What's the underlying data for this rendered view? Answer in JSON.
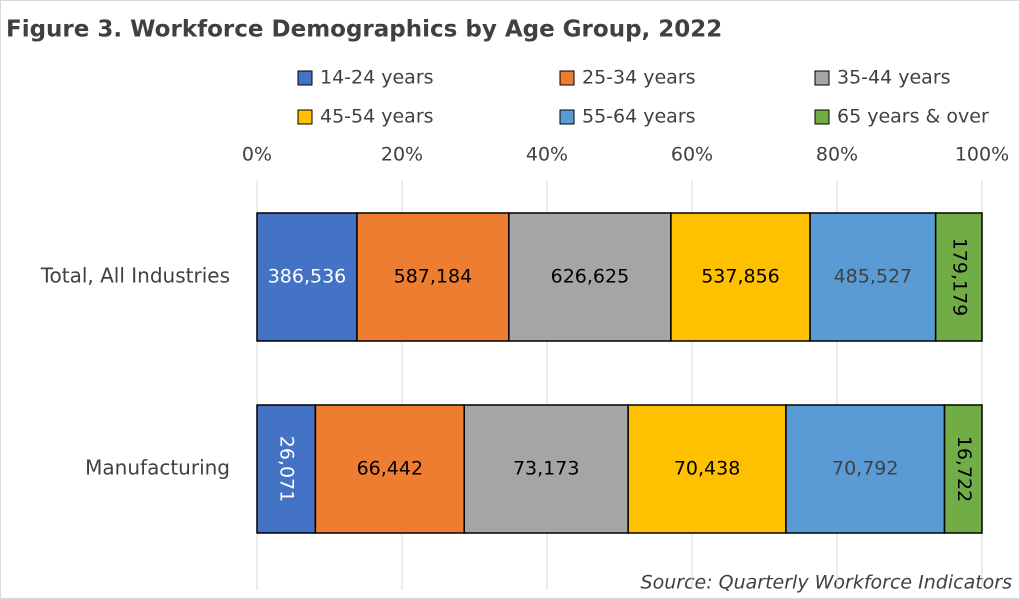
{
  "chart_data": {
    "type": "stacked_bar_100_horizontal",
    "title": "Figure 3. Workforce Demographics by Age Group, 2022",
    "source": "Source: Quarterly Workforce Indicators",
    "categories": [
      "Total, All Industries",
      "Manufacturing"
    ],
    "series": [
      {
        "name": "14-24 years",
        "color": "#4472c4",
        "values": [
          386536,
          26071
        ],
        "value_labels": [
          "386,536",
          "26,071"
        ]
      },
      {
        "name": "25-34 years",
        "color": "#ed7d31",
        "values": [
          587184,
          66442
        ],
        "value_labels": [
          "587,184",
          "66,442"
        ]
      },
      {
        "name": "35-44 years",
        "color": "#a5a5a5",
        "values": [
          626625,
          73173
        ],
        "value_labels": [
          "626,625",
          "73,173"
        ]
      },
      {
        "name": "45-54 years",
        "color": "#ffc000",
        "values": [
          537856,
          70438
        ],
        "value_labels": [
          "537,856",
          "70,438"
        ]
      },
      {
        "name": "55-64 years",
        "color": "#5b9bd5",
        "values": [
          485527,
          70792
        ],
        "value_labels": [
          "485,527",
          "70,792"
        ]
      },
      {
        "name": "65 years & over",
        "color": "#70ad47",
        "values": [
          179179,
          16722
        ],
        "value_labels": [
          "179,179",
          "16,722"
        ]
      }
    ],
    "xlim": [
      0,
      100
    ],
    "xticks": [
      {
        "value": 0,
        "label": "0%"
      },
      {
        "value": 20,
        "label": "20%"
      },
      {
        "value": 40,
        "label": "40%"
      },
      {
        "value": 60,
        "label": "60%"
      },
      {
        "value": 80,
        "label": "80%"
      },
      {
        "value": 100,
        "label": "100%"
      }
    ],
    "grid": true,
    "legend": "top"
  }
}
